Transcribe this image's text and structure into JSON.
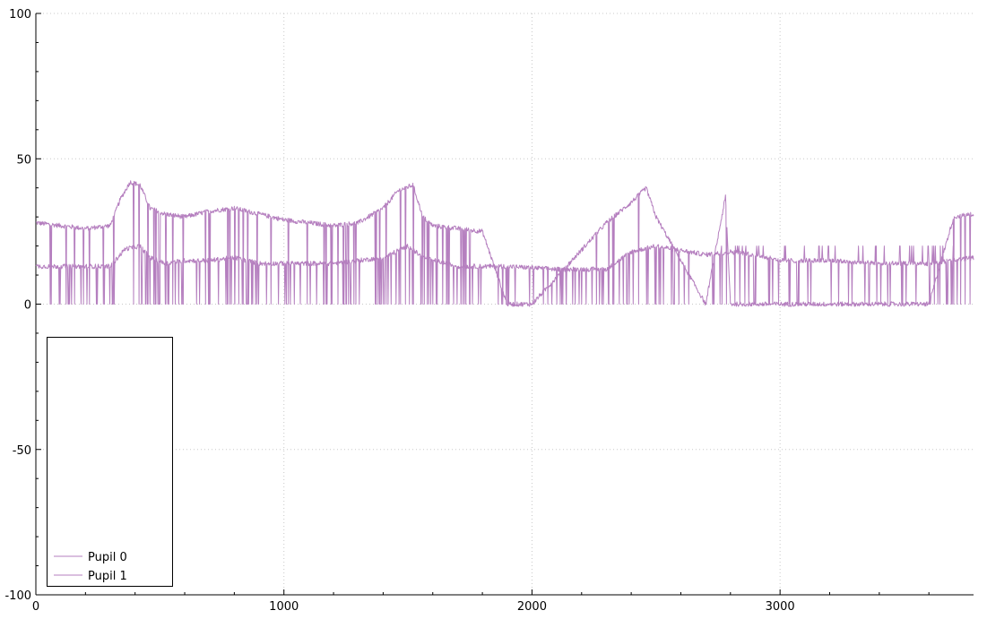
{
  "chart_data": {
    "type": "line",
    "xlim": [
      0,
      3780
    ],
    "ylim": [
      -100,
      100
    ],
    "x_ticks": [
      0,
      1000,
      2000,
      3000
    ],
    "x_tick_labels": [
      "0",
      "1000",
      "2000",
      "3000"
    ],
    "y_ticks": [
      -100,
      -50,
      0,
      50,
      100
    ],
    "y_tick_labels": [
      "-100",
      "-50",
      "0",
      "50",
      "100"
    ],
    "grid": true,
    "legend_position": "bottom-left",
    "series_color": "#b57fbf",
    "series": [
      {
        "name": "Pupil 0",
        "description_points": [
          [
            0,
            28
          ],
          [
            100,
            27
          ],
          [
            200,
            26
          ],
          [
            300,
            27
          ],
          [
            340,
            36
          ],
          [
            380,
            42
          ],
          [
            420,
            41
          ],
          [
            460,
            33
          ],
          [
            520,
            31
          ],
          [
            600,
            30
          ],
          [
            700,
            32
          ],
          [
            800,
            33
          ],
          [
            900,
            31
          ],
          [
            1000,
            29
          ],
          [
            1100,
            28
          ],
          [
            1200,
            27
          ],
          [
            1300,
            28
          ],
          [
            1400,
            33
          ],
          [
            1460,
            39
          ],
          [
            1520,
            41
          ],
          [
            1560,
            30
          ],
          [
            1600,
            27
          ],
          [
            1700,
            26
          ],
          [
            1800,
            25
          ],
          [
            1900,
            0
          ],
          [
            2000,
            0
          ],
          [
            2300,
            28
          ],
          [
            2400,
            35
          ],
          [
            2460,
            40
          ],
          [
            2500,
            30
          ],
          [
            2700,
            0
          ],
          [
            2780,
            37
          ],
          [
            2800,
            0
          ],
          [
            3000,
            0
          ],
          [
            3600,
            0
          ],
          [
            3700,
            30
          ],
          [
            3780,
            31
          ]
        ]
      },
      {
        "name": "Pupil 1",
        "description_points": [
          [
            0,
            13
          ],
          [
            200,
            13
          ],
          [
            300,
            13
          ],
          [
            360,
            19
          ],
          [
            420,
            20
          ],
          [
            460,
            16
          ],
          [
            520,
            14
          ],
          [
            600,
            15
          ],
          [
            700,
            15
          ],
          [
            800,
            16
          ],
          [
            900,
            14
          ],
          [
            1000,
            14
          ],
          [
            1200,
            14
          ],
          [
            1400,
            16
          ],
          [
            1500,
            20
          ],
          [
            1560,
            16
          ],
          [
            1700,
            13
          ],
          [
            1900,
            13
          ],
          [
            2100,
            12
          ],
          [
            2300,
            12
          ],
          [
            2400,
            18
          ],
          [
            2500,
            20
          ],
          [
            2700,
            17
          ],
          [
            2800,
            18
          ],
          [
            2900,
            17
          ],
          [
            3000,
            15
          ],
          [
            3200,
            15
          ],
          [
            3400,
            14
          ],
          [
            3600,
            14
          ],
          [
            3700,
            15
          ],
          [
            3780,
            16
          ]
        ]
      }
    ]
  }
}
